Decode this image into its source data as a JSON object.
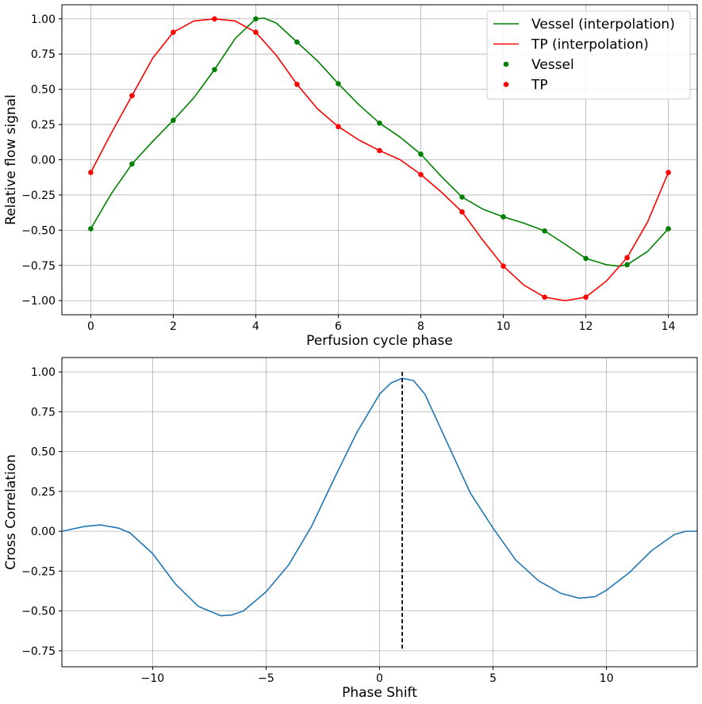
{
  "chart_data": [
    {
      "type": "line",
      "xlabel": "Perfusion cycle phase",
      "ylabel": "Relative flow signal",
      "xlim": [
        -0.7,
        14.7
      ],
      "ylim": [
        -1.1,
        1.1
      ],
      "xticks": [
        0,
        2,
        4,
        6,
        8,
        10,
        12,
        14
      ],
      "yticks": [
        -1.0,
        -0.75,
        -0.5,
        -0.25,
        0.0,
        0.25,
        0.5,
        0.75,
        1.0
      ],
      "xtick_labels": [
        "0",
        "2",
        "4",
        "6",
        "8",
        "10",
        "12",
        "14"
      ],
      "ytick_labels": [
        "−1.00",
        "−0.75",
        "−0.50",
        "−0.25",
        "0.00",
        "0.25",
        "0.50",
        "0.75",
        "1.00"
      ],
      "grid": true,
      "legend_position": "top-right",
      "series": [
        {
          "name": "Vessel (interpolation)",
          "kind": "line",
          "color": "#008000",
          "x": [
            0,
            0.5,
            1,
            1.5,
            2,
            2.5,
            3,
            3.5,
            4,
            4.2,
            4.5,
            5,
            5.5,
            6,
            6.5,
            7,
            7.5,
            8,
            8.5,
            9,
            9.5,
            10,
            10.5,
            11,
            11.5,
            12,
            12.5,
            12.8,
            13,
            13.5,
            14
          ],
          "y": [
            -0.49,
            -0.24,
            -0.03,
            0.13,
            0.28,
            0.44,
            0.64,
            0.86,
            1.0,
            1.005,
            0.97,
            0.835,
            0.7,
            0.54,
            0.39,
            0.26,
            0.16,
            0.04,
            -0.12,
            -0.265,
            -0.35,
            -0.405,
            -0.45,
            -0.505,
            -0.6,
            -0.7,
            -0.745,
            -0.755,
            -0.745,
            -0.65,
            -0.49
          ]
        },
        {
          "name": "TP (interpolation)",
          "kind": "line",
          "color": "#ff0000",
          "x": [
            0,
            0.5,
            1,
            1.5,
            2,
            2.5,
            3,
            3.5,
            4,
            4.5,
            5,
            5.5,
            6,
            6.5,
            7,
            7.5,
            8,
            8.5,
            9,
            9.5,
            10,
            10.5,
            11,
            11.5,
            12,
            12.5,
            13,
            13.5,
            14
          ],
          "y": [
            -0.09,
            0.19,
            0.455,
            0.72,
            0.905,
            0.985,
            1.0,
            0.985,
            0.905,
            0.74,
            0.535,
            0.36,
            0.235,
            0.14,
            0.065,
            0.0,
            -0.105,
            -0.23,
            -0.37,
            -0.57,
            -0.755,
            -0.89,
            -0.975,
            -1.0,
            -0.975,
            -0.86,
            -0.695,
            -0.44,
            -0.09
          ]
        },
        {
          "name": "Vessel",
          "kind": "scatter",
          "color": "#008000",
          "x": [
            0,
            1,
            2,
            3,
            4,
            5,
            6,
            7,
            8,
            9,
            10,
            11,
            12,
            13,
            14
          ],
          "y": [
            -0.49,
            -0.03,
            0.28,
            0.64,
            1.0,
            0.835,
            0.54,
            0.26,
            0.04,
            -0.265,
            -0.405,
            -0.505,
            -0.7,
            -0.745,
            -0.49
          ]
        },
        {
          "name": "TP",
          "kind": "scatter",
          "color": "#ff0000",
          "x": [
            0,
            1,
            2,
            3,
            4,
            5,
            6,
            7,
            8,
            9,
            10,
            11,
            12,
            13,
            14
          ],
          "y": [
            -0.09,
            0.455,
            0.905,
            1.0,
            0.905,
            0.535,
            0.235,
            0.065,
            -0.105,
            -0.37,
            -0.755,
            -0.975,
            -0.975,
            -0.695,
            -0.09
          ]
        }
      ]
    },
    {
      "type": "line",
      "xlabel": "Phase Shift",
      "ylabel": "Cross Correlation",
      "xlim": [
        -14,
        14
      ],
      "ylim": [
        -0.85,
        1.09
      ],
      "xticks": [
        -10,
        -5,
        0,
        5,
        10
      ],
      "yticks": [
        -0.75,
        -0.5,
        -0.25,
        0.0,
        0.25,
        0.5,
        0.75,
        1.0
      ],
      "xtick_labels": [
        "−10",
        "−5",
        "0",
        "5",
        "10"
      ],
      "ytick_labels": [
        "−0.75",
        "−0.50",
        "−0.25",
        "0.00",
        "0.25",
        "0.50",
        "0.75",
        "1.00"
      ],
      "grid": true,
      "vline": {
        "x": 1,
        "ymin": -0.75,
        "ymax": 1.0,
        "color": "#000000",
        "style": "dashed"
      },
      "series": [
        {
          "kind": "line",
          "color": "#1f77b4",
          "x": [
            -14,
            -13,
            -12.3,
            -11.5,
            -11,
            -10,
            -9,
            -8,
            -7,
            -6.5,
            -6,
            -5,
            -4,
            -3,
            -2,
            -1,
            0,
            0.5,
            1,
            1.5,
            2,
            3,
            4,
            5,
            6,
            7,
            8,
            8.8,
            9.5,
            10,
            11,
            12,
            13,
            13.5,
            14
          ],
          "y": [
            0.0,
            0.03,
            0.04,
            0.02,
            -0.01,
            -0.14,
            -0.33,
            -0.47,
            -0.53,
            -0.525,
            -0.5,
            -0.38,
            -0.21,
            0.03,
            0.33,
            0.62,
            0.86,
            0.93,
            0.96,
            0.945,
            0.86,
            0.55,
            0.24,
            0.02,
            -0.18,
            -0.31,
            -0.39,
            -0.42,
            -0.41,
            -0.37,
            -0.26,
            -0.12,
            -0.02,
            0.0,
            0.0
          ]
        }
      ]
    }
  ]
}
